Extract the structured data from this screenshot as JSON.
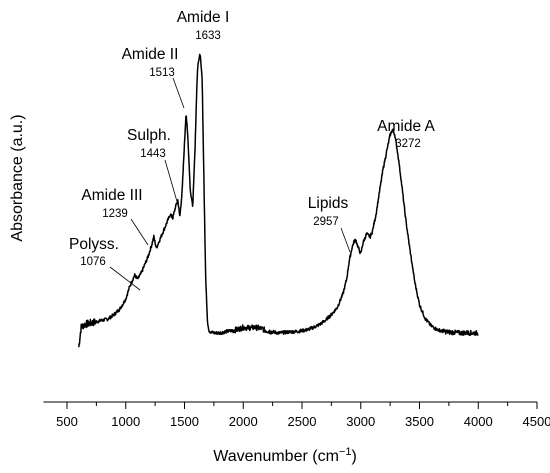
{
  "chart_data": {
    "type": "line",
    "title": "",
    "xlabel_text": "Wavenumber (cm",
    "xlabel_sup": "−1",
    "xlabel_close": ")",
    "ylabel": "Absorbance (a.u.)",
    "xlim": [
      300,
      4500
    ],
    "xticks": [
      "500",
      "1000",
      "1500",
      "2000",
      "2500",
      "3000",
      "3500",
      "4000",
      "4500"
    ],
    "grid": false,
    "annotations": [
      {
        "name": "Amide I",
        "value": "1633"
      },
      {
        "name": "Amide II",
        "value": "1513"
      },
      {
        "name": "Sulph.",
        "value": "1443"
      },
      {
        "name": "Amide III",
        "value": "1239"
      },
      {
        "name": "Polyss.",
        "value": "1076"
      },
      {
        "name": "Lipids",
        "value": "2957"
      },
      {
        "name": "Amide A",
        "value": "3272"
      }
    ],
    "series": [
      {
        "x": [
          600,
          620,
          650,
          700,
          750,
          800,
          850,
          900,
          950,
          1000,
          1030,
          1060,
          1076,
          1100,
          1130,
          1160,
          1190,
          1220,
          1239,
          1260,
          1290,
          1320,
          1350,
          1380,
          1400,
          1420,
          1443,
          1460,
          1480,
          1500,
          1513,
          1530,
          1550,
          1570,
          1590,
          1610,
          1633,
          1650,
          1665,
          1680,
          1695,
          1710,
          1730,
          1760,
          1800,
          1850,
          1900,
          1950,
          2000,
          2050,
          2100,
          2150,
          2200,
          2250,
          2300,
          2350,
          2400,
          2450,
          2500,
          2550,
          2600,
          2650,
          2700,
          2750,
          2800,
          2850,
          2880,
          2900,
          2925,
          2940,
          2957,
          2980,
          3000,
          3020,
          3050,
          3080,
          3100,
          3130,
          3160,
          3190,
          3220,
          3250,
          3272,
          3290,
          3320,
          3350,
          3380,
          3420,
          3460,
          3500,
          3550,
          3600,
          3650,
          3700,
          3750,
          3800,
          3850,
          3900,
          3950,
          4000
        ],
        "y": [
          -0.05,
          0.02,
          0.03,
          0.035,
          0.04,
          0.045,
          0.05,
          0.065,
          0.085,
          0.12,
          0.16,
          0.19,
          0.205,
          0.19,
          0.21,
          0.24,
          0.27,
          0.31,
          0.34,
          0.3,
          0.33,
          0.36,
          0.39,
          0.42,
          0.405,
          0.44,
          0.47,
          0.41,
          0.5,
          0.67,
          0.78,
          0.68,
          0.5,
          0.45,
          0.66,
          0.93,
          0.99,
          0.9,
          0.55,
          0.2,
          0.04,
          0.008,
          0.002,
          0.0,
          0.0,
          0.005,
          0.008,
          0.012,
          0.02,
          0.018,
          0.02,
          0.016,
          0.008,
          0.004,
          0.0,
          0.002,
          0.004,
          0.005,
          0.008,
          0.012,
          0.02,
          0.03,
          0.045,
          0.065,
          0.09,
          0.14,
          0.19,
          0.25,
          0.3,
          0.32,
          0.33,
          0.3,
          0.28,
          0.32,
          0.35,
          0.34,
          0.36,
          0.42,
          0.5,
          0.58,
          0.64,
          0.7,
          0.72,
          0.7,
          0.62,
          0.52,
          0.41,
          0.29,
          0.18,
          0.1,
          0.05,
          0.025,
          0.012,
          0.006,
          0.003,
          0.002,
          0.0,
          0.001,
          0.0,
          0.0
        ]
      }
    ]
  }
}
